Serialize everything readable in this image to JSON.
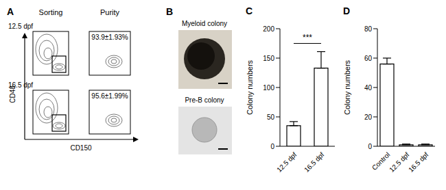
{
  "panels": [
    {
      "label": "A",
      "columns": [
        "Sorting",
        "Purity"
      ],
      "rows": [
        {
          "label": "12.5 dpf",
          "purity": "93.9±1.93%"
        },
        {
          "label": "16.5 dpf",
          "purity": "95.6±1.99%"
        }
      ],
      "y_axis": "CD48",
      "x_axis": "CD150"
    },
    {
      "label": "B",
      "images": [
        "Myeloid colony",
        "Pre-B colony"
      ]
    }
  ],
  "chart_data": [
    {
      "type": "bar",
      "title": "C",
      "categories": [
        "12.5 dpf",
        "16.5 dpf"
      ],
      "values": [
        35,
        133
      ],
      "errors": [
        7,
        28
      ],
      "ylim": [
        0,
        200
      ],
      "yticks": [
        0,
        50,
        100,
        150,
        200
      ],
      "ylabel": "Colony numbers",
      "color": "#ffffff",
      "annotations": [
        {
          "text": "***",
          "between": [
            "12.5 dpf",
            "16.5 dpf"
          ]
        }
      ]
    },
    {
      "type": "bar",
      "title": "D",
      "categories": [
        "Control",
        "12.5 dpf",
        "16.5 dpf"
      ],
      "values": [
        56,
        1,
        1
      ],
      "errors": [
        4,
        0.5,
        0.5
      ],
      "ylim": [
        0,
        80
      ],
      "yticks": [
        0,
        20,
        40,
        60,
        80
      ],
      "ylabel": "Colony numbers",
      "color": "#ffffff"
    }
  ]
}
